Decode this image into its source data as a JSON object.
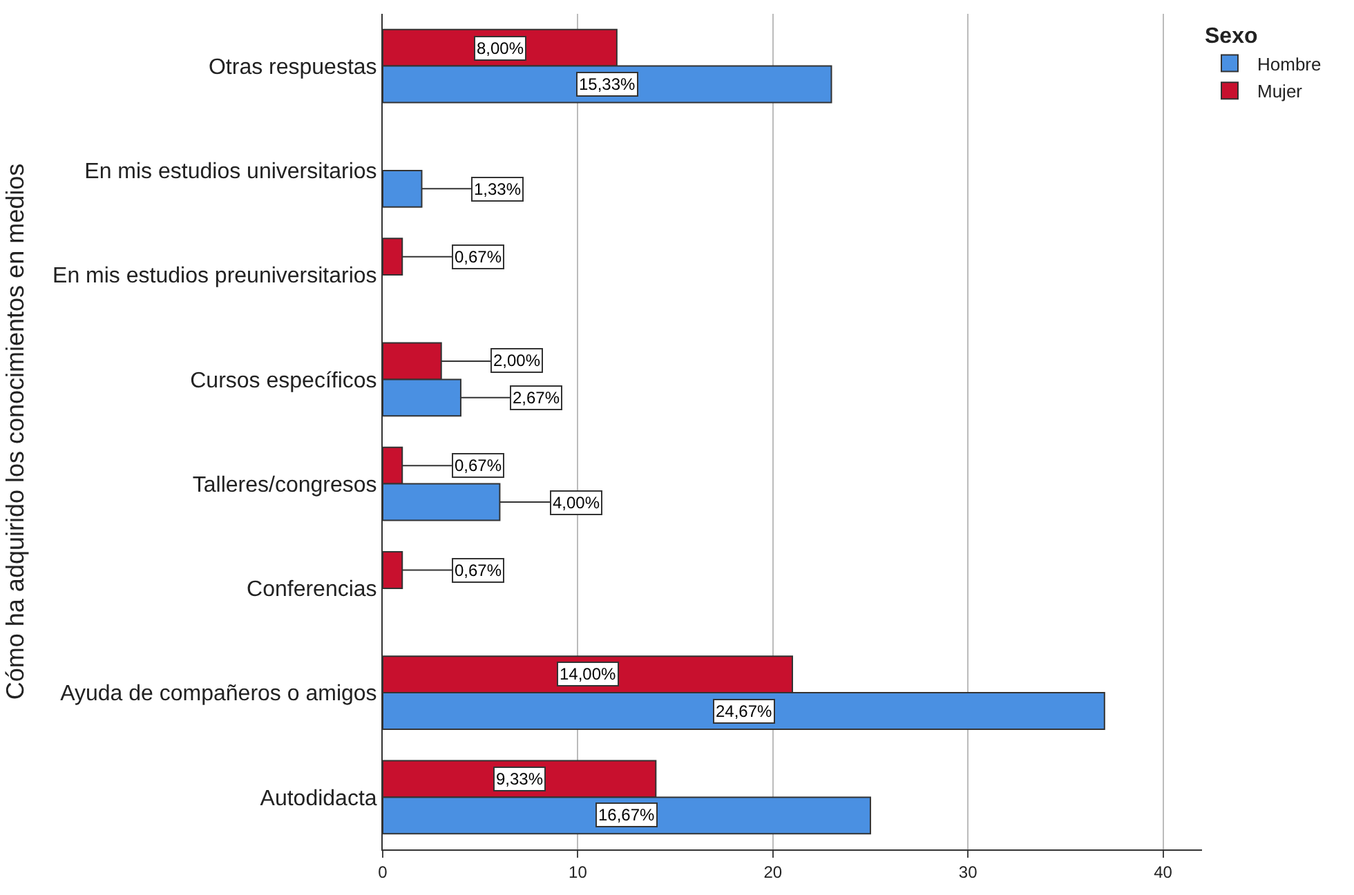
{
  "chart_data": {
    "type": "bar",
    "orientation": "horizontal",
    "ylabel": "Cómo ha adquirido los conocimientos en medios",
    "legend_title": "Sexo",
    "legend": "top right",
    "grid": "x",
    "categories": [
      "Otras respuestas",
      "En mis estudios universitarios",
      "En mis estudios preuniversitarios",
      "Cursos específicos",
      "Talleres/congresos",
      "Conferencias",
      "Ayuda de compañeros o amigos",
      "Autodidacta"
    ],
    "xlim": [
      0,
      42
    ],
    "xticks": [
      0,
      10,
      20,
      30,
      40
    ],
    "series": [
      {
        "name": "Hombre",
        "color": "#4a90e2",
        "values": [
          23,
          2,
          null,
          4,
          6,
          null,
          37,
          25
        ]
      },
      {
        "name": "Mujer",
        "color": "#c8102e",
        "values": [
          12,
          null,
          1,
          3,
          1,
          1,
          21,
          14
        ]
      }
    ],
    "annotations": [
      "8,00%",
      "15,33%",
      "1,33%",
      "0,67%",
      "2,00%",
      "2,67%",
      "0,67%",
      "4,00%",
      "0,67%",
      "14,00%",
      "24,67%",
      "9,33%",
      "16,67%"
    ]
  }
}
